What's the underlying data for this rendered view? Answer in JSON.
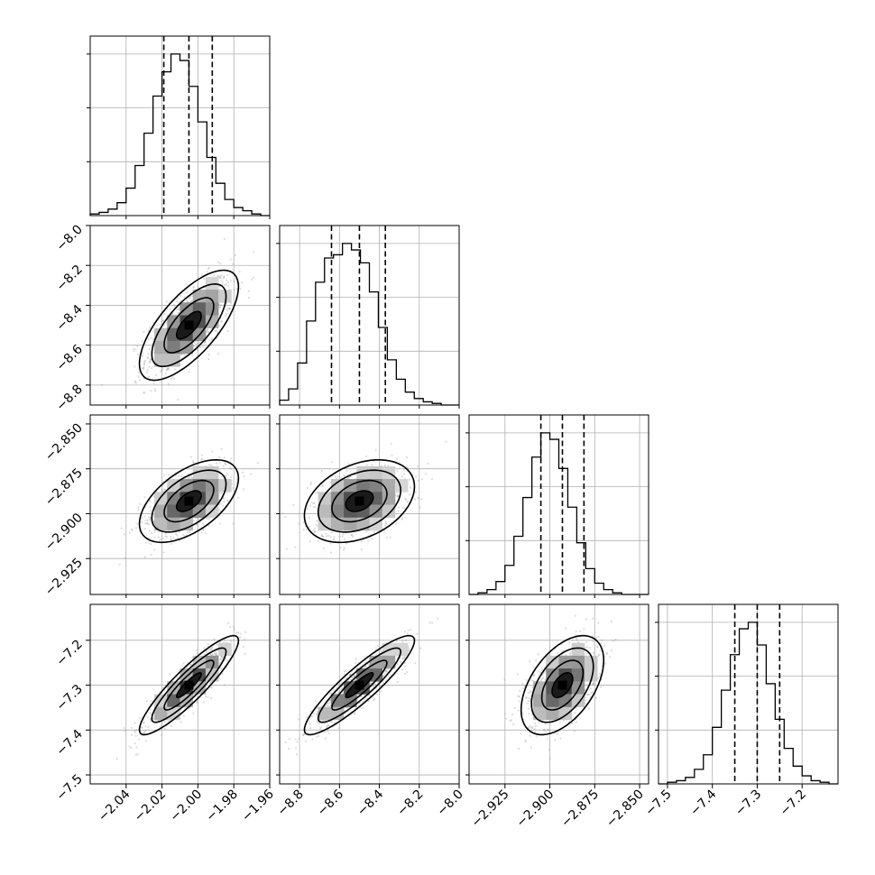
{
  "chart_data": {
    "type": "corner",
    "grid": true,
    "parameters": [
      {
        "index": 0,
        "range": [
          -2.06,
          -1.96
        ],
        "ticks": [
          -2.04,
          -2.02,
          -2.0,
          -1.98,
          -1.96
        ],
        "tick_labels": [
          "−2.04",
          "−2.02",
          "−2.00",
          "−1.98",
          "−1.96"
        ],
        "mean": -2.005,
        "sd": 0.012,
        "quantiles": [
          -2.019,
          -2.005,
          -1.992
        ]
      },
      {
        "index": 1,
        "range": [
          -8.9,
          -8.0
        ],
        "ticks": [
          -8.8,
          -8.6,
          -8.4,
          -8.2,
          -8.0
        ],
        "tick_labels": [
          "−8.8",
          "−8.6",
          "−8.4",
          "−8.2",
          "−8.0"
        ],
        "mean": -8.5,
        "sd": 0.12,
        "quantiles": [
          -8.64,
          -8.5,
          -8.37
        ]
      },
      {
        "index": 2,
        "range": [
          -2.945,
          -2.845
        ],
        "ticks": [
          -2.925,
          -2.9,
          -2.875,
          -2.85
        ],
        "tick_labels": [
          "−2.925",
          "−2.900",
          "−2.875",
          "−2.850"
        ],
        "mean": -2.893,
        "sd": 0.01,
        "quantiles": [
          -2.905,
          -2.893,
          -2.881
        ]
      },
      {
        "index": 3,
        "range": [
          -7.52,
          -7.12
        ],
        "ticks": [
          -7.5,
          -7.4,
          -7.3,
          -7.2
        ],
        "tick_labels": [
          "−7.5",
          "−7.4",
          "−7.3",
          "−7.2"
        ],
        "mean": -7.3,
        "sd": 0.048,
        "quantiles": [
          -7.35,
          -7.3,
          -7.25
        ]
      }
    ],
    "histograms": [
      {
        "param": 0,
        "counts": [
          1,
          2,
          4,
          8,
          17,
          31,
          51,
          74,
          89,
          100,
          96,
          80,
          58,
          36,
          20,
          10,
          5,
          3,
          1,
          0
        ]
      },
      {
        "param": 1,
        "counts": [
          3,
          10,
          26,
          52,
          76,
          91,
          93,
          100,
          96,
          88,
          70,
          48,
          28,
          16,
          8,
          4,
          2,
          1,
          0,
          0
        ]
      },
      {
        "param": 2,
        "counts": [
          0,
          1,
          3,
          8,
          18,
          36,
          60,
          85,
          100,
          96,
          78,
          54,
          32,
          16,
          7,
          3,
          1,
          0,
          0,
          0
        ]
      },
      {
        "param": 3,
        "counts": [
          0,
          1,
          2,
          4,
          9,
          18,
          35,
          58,
          80,
          96,
          100,
          86,
          62,
          40,
          22,
          11,
          5,
          2,
          1,
          0
        ]
      }
    ],
    "correlations": [
      {
        "x": 0,
        "y": 1,
        "rho": 0.7
      },
      {
        "x": 0,
        "y": 2,
        "rho": 0.55
      },
      {
        "x": 1,
        "y": 2,
        "rho": 0.35
      },
      {
        "x": 0,
        "y": 3,
        "rho": 0.9
      },
      {
        "x": 1,
        "y": 3,
        "rho": 0.9
      },
      {
        "x": 2,
        "y": 3,
        "rho": 0.5
      }
    ],
    "contour_levels_sigma": [
      0.5,
      1.0,
      1.5,
      2.0
    ],
    "colors": {
      "line": "#000000",
      "grid": "#b0b0b0",
      "samples": "#9a9a9a"
    }
  }
}
